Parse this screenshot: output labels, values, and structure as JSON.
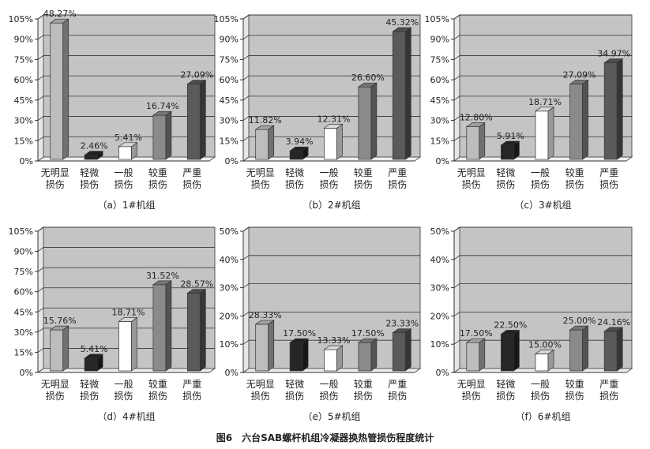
{
  "figure_caption": "图6　六台SAB螺杆机组冷凝器换热管损伤程度统计",
  "colors": {
    "plot_bg": "#c4c4c4",
    "bars": [
      "#bdbdbd",
      "#262626",
      "#ffffff",
      "#8a8a8a",
      "#5a5a5a"
    ]
  },
  "chart_data": [
    {
      "type": "bar",
      "title": "（a）1#机组",
      "categories": [
        [
          "无明显",
          "损伤"
        ],
        [
          "轻微",
          "损伤"
        ],
        [
          "一般",
          "损伤"
        ],
        [
          "较重",
          "损伤"
        ],
        [
          "严重",
          "损伤"
        ]
      ],
      "values": [
        48.27,
        2.46,
        5.41,
        16.74,
        27.09
      ],
      "data_labels": [
        "48.27%",
        "2.46%",
        "5.41%",
        "16.74%",
        "27.09%"
      ],
      "bar_heights_percent": [
        96,
        3,
        9,
        31,
        53
      ],
      "yticks": [
        "0%",
        "15%",
        "30%",
        "45%",
        "60%",
        "75%",
        "90%",
        "105%"
      ],
      "ylim": [
        0,
        105
      ],
      "grid": true
    },
    {
      "type": "bar",
      "title": "（b）2#机组",
      "categories": [
        [
          "无明显",
          "损伤"
        ],
        [
          "轻微",
          "损伤"
        ],
        [
          "一般",
          "损伤"
        ],
        [
          "较重",
          "损伤"
        ],
        [
          "严重",
          "损伤"
        ]
      ],
      "values": [
        11.82,
        3.94,
        12.31,
        26.6,
        45.32
      ],
      "data_labels": [
        "11.82%",
        "3.94%",
        "12.31%",
        "26.60%",
        "45.32%"
      ],
      "bar_heights_percent": [
        21,
        6,
        22,
        51,
        90
      ],
      "yticks": [
        "0%",
        "15%",
        "30%",
        "45%",
        "60%",
        "75%",
        "90%",
        "105%"
      ],
      "ylim": [
        0,
        105
      ],
      "grid": true
    },
    {
      "type": "bar",
      "title": "（c）3#机组",
      "categories": [
        [
          "无明显",
          "损伤"
        ],
        [
          "轻微",
          "损伤"
        ],
        [
          "一般",
          "损伤"
        ],
        [
          "较重",
          "损伤"
        ],
        [
          "严重",
          "损伤"
        ]
      ],
      "values": [
        12.8,
        5.91,
        18.71,
        27.09,
        34.97
      ],
      "data_labels": [
        "12.80%",
        "5.91%",
        "18.71%",
        "27.09%",
        "34.97%"
      ],
      "bar_heights_percent": [
        23,
        10,
        34,
        53,
        68
      ],
      "yticks": [
        "0%",
        "15%",
        "30%",
        "45%",
        "60%",
        "75%",
        "90%",
        "105%"
      ],
      "ylim": [
        0,
        105
      ],
      "grid": true
    },
    {
      "type": "bar",
      "title": "（d）4#机组",
      "categories": [
        [
          "无明显",
          "损伤"
        ],
        [
          "轻微",
          "损伤"
        ],
        [
          "一般",
          "损伤"
        ],
        [
          "较重",
          "损伤"
        ],
        [
          "严重",
          "损伤"
        ]
      ],
      "values": [
        15.76,
        5.41,
        18.71,
        31.52,
        28.57
      ],
      "data_labels": [
        "15.76%",
        "5.41%",
        "18.71%",
        "31.52%",
        "28.57%"
      ],
      "bar_heights_percent": [
        29,
        9,
        35,
        61,
        55
      ],
      "yticks": [
        "0%",
        "15%",
        "30%",
        "45%",
        "60%",
        "75%",
        "90%",
        "105%"
      ],
      "ylim": [
        0,
        105
      ],
      "grid": true
    },
    {
      "type": "bar",
      "title": "（e）5#机组",
      "categories": [
        [
          "无明显",
          "损伤"
        ],
        [
          "轻微",
          "损伤"
        ],
        [
          "一般",
          "损伤"
        ],
        [
          "较重",
          "损伤"
        ],
        [
          "严重",
          "损伤"
        ]
      ],
      "values": [
        28.33,
        17.5,
        13.33,
        17.5,
        23.33
      ],
      "data_labels": [
        "28.33%",
        "17.50%",
        "13.33%",
        "17.50%",
        "23.33%"
      ],
      "bar_heights_percent": [
        33,
        20,
        15,
        20,
        27
      ],
      "yticks": [
        "0%",
        "10%",
        "20%",
        "30%",
        "40%",
        "50%"
      ],
      "ylim": [
        0,
        50
      ],
      "grid": true
    },
    {
      "type": "bar",
      "title": "（f）6#机组",
      "categories": [
        [
          "无明显",
          "损伤"
        ],
        [
          "轻微",
          "损伤"
        ],
        [
          "一般",
          "损伤"
        ],
        [
          "较重",
          "损伤"
        ],
        [
          "严重",
          "损伤"
        ]
      ],
      "values": [
        17.5,
        22.5,
        15.0,
        25.0,
        24.16
      ],
      "data_labels": [
        "17.50%",
        "22.50%",
        "15.00%",
        "25.00%",
        "24.16%"
      ],
      "bar_heights_percent": [
        20,
        26,
        12,
        29,
        28
      ],
      "yticks": [
        "0%",
        "10%",
        "20%",
        "30%",
        "40%",
        "50%"
      ],
      "ylim": [
        0,
        50
      ],
      "grid": true
    }
  ]
}
